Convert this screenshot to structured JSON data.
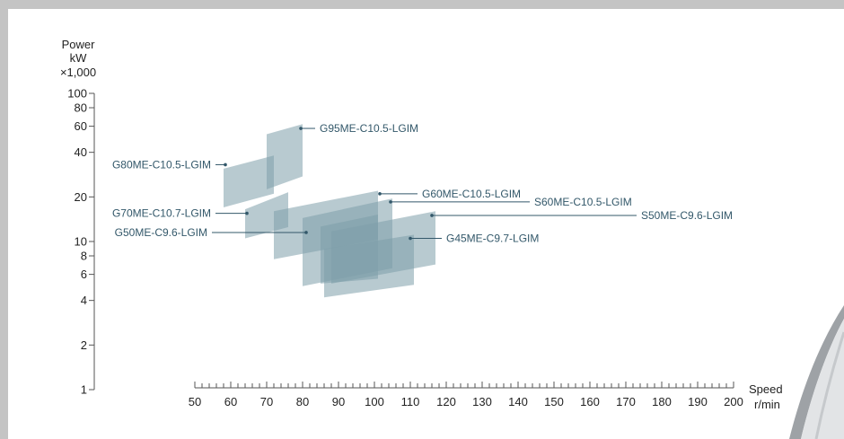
{
  "chart_data": {
    "type": "area",
    "title": "",
    "xlabel": "Speed r/min",
    "ylabel": "Power kW ×1,000",
    "xlabel_lines": [
      "Speed",
      "r/min"
    ],
    "ylabel_lines": [
      "Power",
      "kW",
      "×1,000"
    ],
    "x_scale": "linear",
    "y_scale": "log",
    "xlim": [
      50,
      200
    ],
    "ylim": [
      1,
      100
    ],
    "x_ticks": [
      50,
      60,
      70,
      80,
      90,
      100,
      110,
      120,
      130,
      140,
      150,
      160,
      170,
      180,
      190,
      200
    ],
    "x_tick_labels": [
      "50",
      "60",
      "70",
      "80",
      "90",
      "100",
      "110",
      "120",
      "130",
      "140",
      "150",
      "160",
      "170",
      "180",
      "190",
      "200"
    ],
    "y_ticks": [
      1,
      2,
      4,
      6,
      8,
      10,
      20,
      40,
      60,
      80,
      100
    ],
    "y_tick_labels": [
      "1",
      "2",
      "4",
      "6",
      "8",
      "10",
      "20",
      "40",
      "60",
      "80",
      "100"
    ],
    "grid": false,
    "legend": "none",
    "fill_color": "#7e9ea9",
    "label_color": "#33586a",
    "series": [
      {
        "name": "G95ME-C10.5-LGIM",
        "speed_range": [
          70,
          80
        ],
        "power_corners": [
          [
            70,
            22.5
          ],
          [
            80,
            27.5
          ],
          [
            80,
            62.0
          ],
          [
            70,
            53.0
          ]
        ],
        "label_anchor": [
          79.5,
          58.0
        ]
      },
      {
        "name": "G80ME-C10.5-LGIM",
        "speed_range": [
          58,
          72
        ],
        "power_corners": [
          [
            58,
            17.0
          ],
          [
            72,
            21.0
          ],
          [
            72,
            38.0
          ],
          [
            58,
            31.0
          ]
        ],
        "label_anchor": [
          58.5,
          33.0
        ]
      },
      {
        "name": "G70ME-C10.7-LGIM",
        "speed_range": [
          64,
          76
        ],
        "power_corners": [
          [
            64,
            10.5
          ],
          [
            76,
            12.5
          ],
          [
            76,
            21.5
          ],
          [
            64,
            16.5
          ]
        ],
        "label_anchor": [
          64.5,
          15.5
        ]
      },
      {
        "name": "G60ME-C10.5-LGIM",
        "speed_range": [
          72,
          101
        ],
        "power_corners": [
          [
            72,
            7.6
          ],
          [
            101,
            10.3
          ],
          [
            101,
            22.0
          ],
          [
            72,
            16.0
          ]
        ],
        "label_anchor": [
          101.5,
          21.0
        ]
      },
      {
        "name": "G50ME-C9.6-LGIM",
        "speed_range": [
          85,
          101
        ],
        "power_corners": [
          [
            85,
            5.2
          ],
          [
            101,
            5.6
          ],
          [
            101,
            15.2
          ],
          [
            85,
            12.6
          ]
        ],
        "label_anchor": [
          81.0,
          11.5
        ]
      },
      {
        "name": "S60ME-C10.5-LGIM",
        "speed_range": [
          80,
          105
        ],
        "power_corners": [
          [
            80,
            5.0
          ],
          [
            105,
            6.6
          ],
          [
            105,
            19.5
          ],
          [
            80,
            14.4
          ]
        ],
        "label_anchor": [
          104.5,
          18.5
        ]
      },
      {
        "name": "S50ME-C9.6-LGIM",
        "speed_range": [
          88,
          117
        ],
        "power_corners": [
          [
            88,
            5.2
          ],
          [
            117,
            7.0
          ],
          [
            117,
            16.0
          ],
          [
            88,
            11.7
          ]
        ],
        "label_anchor": [
          116.0,
          15.0
        ]
      },
      {
        "name": "G45ME-C9.7-LGIM",
        "speed_range": [
          86,
          111
        ],
        "power_corners": [
          [
            86,
            4.2
          ],
          [
            111,
            5.1
          ],
          [
            111,
            11.1
          ],
          [
            86,
            8.9
          ]
        ],
        "label_anchor": [
          110.0,
          10.5
        ]
      }
    ]
  }
}
